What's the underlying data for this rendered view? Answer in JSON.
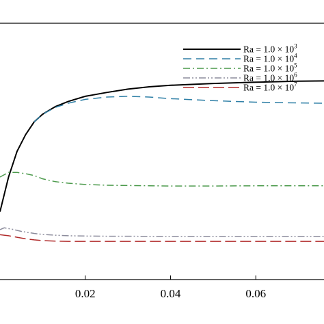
{
  "chart_data": {
    "type": "line",
    "title": "",
    "xlabel": "",
    "ylabel": "",
    "xlim": [
      0.0,
      0.076
    ],
    "ylim": [
      0.0,
      1.0
    ],
    "grid": false,
    "legend_position": "top-right",
    "x_ticks": [
      {
        "value": 0.02,
        "label": "0.02"
      },
      {
        "value": 0.04,
        "label": "0.04"
      },
      {
        "value": 0.06,
        "label": "0.06"
      }
    ],
    "series": [
      {
        "name": "Ra = 1.0 × 10³",
        "label_base": "Ra = 1.0 × 10",
        "label_exp": "3",
        "color": "#000000",
        "dash": "",
        "x": [
          0.0,
          0.002,
          0.004,
          0.006,
          0.008,
          0.01,
          0.013,
          0.016,
          0.02,
          0.025,
          0.03,
          0.035,
          0.04,
          0.05,
          0.06,
          0.07,
          0.076
        ],
        "y": [
          0.265,
          0.4,
          0.5,
          0.565,
          0.615,
          0.645,
          0.675,
          0.695,
          0.715,
          0.73,
          0.743,
          0.752,
          0.758,
          0.765,
          0.77,
          0.774,
          0.775
        ]
      },
      {
        "name": "Ra = 1.0 × 10⁴",
        "label_base": "Ra = 1.0 × 10",
        "label_exp": "4",
        "color": "#2e7fa6",
        "dash": "12,7",
        "x": [
          0.008,
          0.01,
          0.013,
          0.016,
          0.02,
          0.025,
          0.03,
          0.035,
          0.04,
          0.05,
          0.06,
          0.07,
          0.076
        ],
        "y": [
          0.615,
          0.645,
          0.672,
          0.688,
          0.703,
          0.712,
          0.715,
          0.712,
          0.706,
          0.698,
          0.692,
          0.689,
          0.688
        ]
      },
      {
        "name": "Ra = 1.0 × 10⁵",
        "label_base": "Ra = 1.0 × 10",
        "label_exp": "5",
        "color": "#4c9a4c",
        "dash": "10,4,2,4",
        "x": [
          0.0,
          0.002,
          0.004,
          0.006,
          0.008,
          0.01,
          0.013,
          0.016,
          0.02,
          0.025,
          0.03,
          0.04,
          0.05,
          0.06,
          0.07,
          0.076
        ],
        "y": [
          0.4,
          0.418,
          0.418,
          0.413,
          0.406,
          0.393,
          0.382,
          0.376,
          0.371,
          0.368,
          0.367,
          0.365,
          0.365,
          0.366,
          0.366,
          0.366
        ]
      },
      {
        "name": "Ra = 1.0 × 10⁶",
        "label_base": "Ra = 1.0 × 10",
        "label_exp": "6",
        "color": "#8c8c9c",
        "dash": "10,3,2,3,2,3",
        "x": [
          0.0,
          0.001,
          0.003,
          0.005,
          0.008,
          0.01,
          0.013,
          0.016,
          0.02,
          0.025,
          0.03,
          0.04,
          0.05,
          0.06,
          0.07,
          0.076
        ],
        "y": [
          0.195,
          0.202,
          0.196,
          0.188,
          0.18,
          0.176,
          0.173,
          0.171,
          0.17,
          0.169,
          0.169,
          0.168,
          0.168,
          0.168,
          0.168,
          0.168
        ]
      },
      {
        "name": "Ra = 1.0 × 10⁷",
        "label_base": "Ra = 1.0 × 10",
        "label_exp": "7",
        "color": "#b02a2a",
        "dash": "16,6",
        "x": [
          0.0,
          0.002,
          0.004,
          0.006,
          0.008,
          0.01,
          0.013,
          0.016,
          0.02,
          0.025,
          0.03,
          0.04,
          0.05,
          0.06,
          0.07,
          0.076
        ],
        "y": [
          0.175,
          0.171,
          0.165,
          0.159,
          0.155,
          0.152,
          0.15,
          0.149,
          0.149,
          0.149,
          0.149,
          0.149,
          0.149,
          0.149,
          0.149,
          0.149
        ]
      }
    ]
  }
}
